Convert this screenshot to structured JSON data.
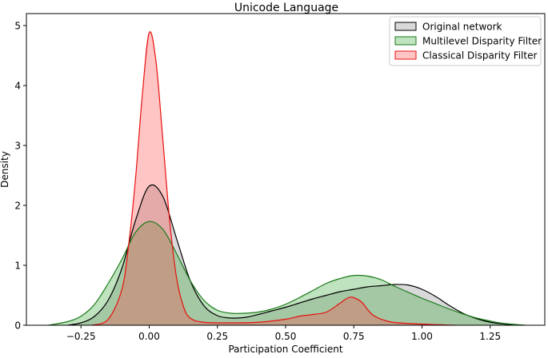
{
  "chart_data": {
    "type": "area",
    "title": "Unicode Language",
    "xlabel": "Participation Coefficient",
    "ylabel": "Density",
    "xlim": [
      -0.45,
      1.45
    ],
    "ylim": [
      0,
      5.2
    ],
    "x_ticks": [
      -0.25,
      0.0,
      0.25,
      0.5,
      0.75,
      1.0,
      1.25
    ],
    "x_tick_labels": [
      "−0.25",
      "0.00",
      "0.25",
      "0.50",
      "0.75",
      "1.00",
      "1.25"
    ],
    "y_ticks": [
      0,
      1,
      2,
      3,
      4,
      5
    ],
    "y_tick_labels": [
      "0",
      "1",
      "2",
      "3",
      "4",
      "5"
    ],
    "grid": false,
    "legend_position": "top-right",
    "series": [
      {
        "name": "Original network",
        "line_color": "#000000",
        "fill_color": "#808080",
        "points": [
          [
            -0.3,
            0.0
          ],
          [
            -0.25,
            0.04
          ],
          [
            -0.2,
            0.15
          ],
          [
            -0.15,
            0.42
          ],
          [
            -0.1,
            0.95
          ],
          [
            -0.05,
            1.75
          ],
          [
            0.0,
            2.32
          ],
          [
            0.05,
            2.15
          ],
          [
            0.1,
            1.45
          ],
          [
            0.15,
            0.75
          ],
          [
            0.2,
            0.33
          ],
          [
            0.25,
            0.16
          ],
          [
            0.3,
            0.12
          ],
          [
            0.35,
            0.13
          ],
          [
            0.4,
            0.18
          ],
          [
            0.45,
            0.24
          ],
          [
            0.5,
            0.3
          ],
          [
            0.55,
            0.37
          ],
          [
            0.6,
            0.44
          ],
          [
            0.65,
            0.5
          ],
          [
            0.7,
            0.56
          ],
          [
            0.75,
            0.6
          ],
          [
            0.8,
            0.64
          ],
          [
            0.85,
            0.66
          ],
          [
            0.9,
            0.68
          ],
          [
            0.95,
            0.67
          ],
          [
            1.0,
            0.6
          ],
          [
            1.05,
            0.48
          ],
          [
            1.1,
            0.33
          ],
          [
            1.15,
            0.2
          ],
          [
            1.2,
            0.11
          ],
          [
            1.25,
            0.05
          ],
          [
            1.3,
            0.02
          ],
          [
            1.35,
            0.0
          ]
        ]
      },
      {
        "name": "Multilevel Disparity Filter",
        "line_color": "#1a7a1a",
        "fill_color": "#2ca02c",
        "points": [
          [
            -0.37,
            0.0
          ],
          [
            -0.3,
            0.06
          ],
          [
            -0.25,
            0.15
          ],
          [
            -0.2,
            0.35
          ],
          [
            -0.15,
            0.7
          ],
          [
            -0.1,
            1.1
          ],
          [
            -0.05,
            1.55
          ],
          [
            0.0,
            1.73
          ],
          [
            0.05,
            1.6
          ],
          [
            0.1,
            1.2
          ],
          [
            0.15,
            0.75
          ],
          [
            0.2,
            0.42
          ],
          [
            0.25,
            0.25
          ],
          [
            0.3,
            0.2
          ],
          [
            0.35,
            0.2
          ],
          [
            0.4,
            0.22
          ],
          [
            0.45,
            0.27
          ],
          [
            0.5,
            0.35
          ],
          [
            0.55,
            0.46
          ],
          [
            0.6,
            0.58
          ],
          [
            0.65,
            0.7
          ],
          [
            0.7,
            0.78
          ],
          [
            0.75,
            0.83
          ],
          [
            0.8,
            0.82
          ],
          [
            0.85,
            0.76
          ],
          [
            0.9,
            0.65
          ],
          [
            0.95,
            0.55
          ],
          [
            1.0,
            0.45
          ],
          [
            1.05,
            0.36
          ],
          [
            1.1,
            0.27
          ],
          [
            1.15,
            0.19
          ],
          [
            1.2,
            0.12
          ],
          [
            1.25,
            0.07
          ],
          [
            1.3,
            0.03
          ],
          [
            1.38,
            0.0
          ]
        ]
      },
      {
        "name": "Classical Disparity Filter",
        "line_color": "#e8100e",
        "fill_color": "#ff4040",
        "points": [
          [
            -0.21,
            0.0
          ],
          [
            -0.15,
            0.1
          ],
          [
            -0.1,
            0.6
          ],
          [
            -0.075,
            1.35
          ],
          [
            -0.05,
            2.45
          ],
          [
            -0.025,
            3.85
          ],
          [
            0.0,
            4.88
          ],
          [
            0.025,
            4.4
          ],
          [
            0.05,
            3.1
          ],
          [
            0.075,
            1.75
          ],
          [
            0.1,
            0.8
          ],
          [
            0.125,
            0.32
          ],
          [
            0.15,
            0.12
          ],
          [
            0.2,
            0.05
          ],
          [
            0.3,
            0.04
          ],
          [
            0.4,
            0.05
          ],
          [
            0.5,
            0.1
          ],
          [
            0.55,
            0.15
          ],
          [
            0.6,
            0.18
          ],
          [
            0.65,
            0.22
          ],
          [
            0.7,
            0.37
          ],
          [
            0.73,
            0.46
          ],
          [
            0.75,
            0.46
          ],
          [
            0.78,
            0.38
          ],
          [
            0.82,
            0.17
          ],
          [
            0.88,
            0.06
          ],
          [
            0.95,
            0.03
          ],
          [
            1.05,
            0.01
          ],
          [
            1.12,
            0.0
          ]
        ]
      }
    ]
  }
}
